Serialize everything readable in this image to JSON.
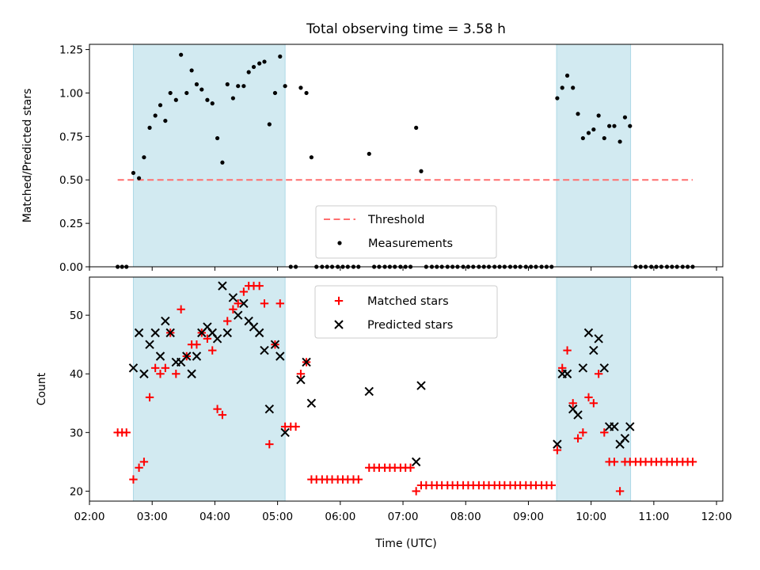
{
  "title": "Total observing time = 3.58 h",
  "colors": {
    "shade": "#add8e6",
    "threshold": "#ff6f6f",
    "measure": "#000000",
    "matched": "#ff0000",
    "predicted": "#000000"
  },
  "chart_data": [
    {
      "type": "scatter",
      "panel": "top",
      "xlabel": "",
      "ylabel": "Matched/Predicted stars",
      "ylim": [
        0,
        1.28
      ],
      "yticks": [
        0.0,
        0.25,
        0.5,
        0.75,
        1.0,
        1.25
      ],
      "ytick_labels": [
        "0.00",
        "0.25",
        "0.50",
        "0.75",
        "1.00",
        "1.25"
      ],
      "xlim_hours": [
        2.0,
        12.1
      ],
      "legend_position": "lower-center",
      "shaded_ranges_hours": [
        [
          2.7,
          5.12
        ],
        [
          9.45,
          10.63
        ]
      ],
      "threshold": {
        "name": "Threshold",
        "value": 0.5,
        "x_range_hours": [
          2.45,
          11.62
        ]
      },
      "measurements": {
        "name": "Measurements",
        "x_hours": [
          2.45,
          2.52,
          2.59,
          2.7,
          2.79,
          2.87,
          2.96,
          3.05,
          3.13,
          3.21,
          3.29,
          3.38,
          3.46,
          3.55,
          3.63,
          3.71,
          3.79,
          3.88,
          3.96,
          4.04,
          4.12,
          4.2,
          4.29,
          4.37,
          4.46,
          4.54,
          4.62,
          4.71,
          4.79,
          4.87,
          4.96,
          5.04,
          5.12,
          5.21,
          5.29,
          5.37,
          5.46,
          5.54,
          5.62,
          5.71,
          5.79,
          5.87,
          5.96,
          6.04,
          6.12,
          6.21,
          6.29,
          6.46,
          6.54,
          6.62,
          6.71,
          6.79,
          6.87,
          6.96,
          7.04,
          7.12,
          7.21,
          7.29,
          7.37,
          7.46,
          7.54,
          7.62,
          7.71,
          7.79,
          7.87,
          7.96,
          8.04,
          8.12,
          8.21,
          8.29,
          8.37,
          8.46,
          8.54,
          8.62,
          8.71,
          8.79,
          8.87,
          8.96,
          9.04,
          9.12,
          9.21,
          9.29,
          9.37,
          9.46,
          9.54,
          9.62,
          9.71,
          9.79,
          9.87,
          9.96,
          10.04,
          10.12,
          10.21,
          10.29,
          10.37,
          10.46,
          10.54,
          10.62,
          10.71,
          10.79,
          10.87,
          10.96,
          11.04,
          11.12,
          11.21,
          11.29,
          11.37,
          11.46,
          11.54,
          11.62
        ],
        "y": [
          0,
          0,
          0,
          0.54,
          0.51,
          0.63,
          0.8,
          0.87,
          0.93,
          0.84,
          1.0,
          0.96,
          1.22,
          1.0,
          1.13,
          1.05,
          1.02,
          0.96,
          0.94,
          0.74,
          0.6,
          1.05,
          0.97,
          1.04,
          1.04,
          1.12,
          1.15,
          1.17,
          1.18,
          0.82,
          1.0,
          1.21,
          1.04,
          0,
          0,
          1.03,
          1.0,
          0.63,
          0,
          0,
          0,
          0,
          0,
          0,
          0,
          0,
          0,
          0.65,
          0,
          0,
          0,
          0,
          0,
          0,
          0,
          0,
          0.8,
          0.55,
          0,
          0,
          0,
          0,
          0,
          0,
          0,
          0,
          0,
          0,
          0,
          0,
          0,
          0,
          0,
          0,
          0,
          0,
          0,
          0,
          0,
          0,
          0,
          0,
          0,
          0.97,
          1.03,
          1.1,
          1.03,
          0.88,
          0.74,
          0.77,
          0.79,
          0.87,
          0.74,
          0.81,
          0.81,
          0.72,
          0.86,
          0.81,
          0,
          0,
          0,
          0,
          0,
          0,
          0,
          0,
          0,
          0,
          0,
          0
        ]
      }
    },
    {
      "type": "scatter",
      "panel": "bottom",
      "xlabel": "Time (UTC)",
      "ylabel": "Count",
      "ylim": [
        18.3,
        56.5
      ],
      "yticks": [
        20,
        30,
        40,
        50
      ],
      "ytick_labels": [
        "20",
        "30",
        "40",
        "50"
      ],
      "xlim_hours": [
        2.0,
        12.1
      ],
      "xticks_hours": [
        2,
        3,
        4,
        5,
        6,
        7,
        8,
        9,
        10,
        11,
        12
      ],
      "xtick_labels": [
        "02:00",
        "03:00",
        "04:00",
        "05:00",
        "06:00",
        "07:00",
        "08:00",
        "09:00",
        "10:00",
        "11:00",
        "12:00"
      ],
      "legend_position": "upper-center",
      "shaded_ranges_hours": [
        [
          2.7,
          5.12
        ],
        [
          9.45,
          10.63
        ]
      ],
      "series": [
        {
          "name": "Matched stars",
          "marker": "plus",
          "x_hours": [
            2.45,
            2.52,
            2.59,
            2.7,
            2.79,
            2.87,
            2.96,
            3.05,
            3.13,
            3.21,
            3.29,
            3.38,
            3.46,
            3.55,
            3.63,
            3.71,
            3.79,
            3.88,
            3.96,
            4.04,
            4.12,
            4.2,
            4.29,
            4.37,
            4.46,
            4.54,
            4.62,
            4.71,
            4.79,
            4.87,
            4.96,
            5.04,
            5.12,
            5.21,
            5.29,
            5.37,
            5.46,
            5.54,
            5.62,
            5.71,
            5.79,
            5.87,
            5.96,
            6.04,
            6.12,
            6.21,
            6.29,
            6.46,
            6.54,
            6.62,
            6.71,
            6.79,
            6.87,
            6.96,
            7.04,
            7.12,
            7.21,
            7.29,
            7.37,
            7.46,
            7.54,
            7.62,
            7.71,
            7.79,
            7.87,
            7.96,
            8.04,
            8.12,
            8.21,
            8.29,
            8.37,
            8.46,
            8.54,
            8.62,
            8.71,
            8.79,
            8.87,
            8.96,
            9.04,
            9.12,
            9.21,
            9.29,
            9.37,
            9.46,
            9.54,
            9.62,
            9.71,
            9.79,
            9.87,
            9.96,
            10.04,
            10.12,
            10.21,
            10.29,
            10.37,
            10.46,
            10.54,
            10.62,
            10.71,
            10.79,
            10.87,
            10.96,
            11.04,
            11.12,
            11.21,
            11.29,
            11.37,
            11.46,
            11.54,
            11.62
          ],
          "y": [
            30,
            30,
            30,
            22,
            24,
            25,
            36,
            41,
            40,
            41,
            47,
            40,
            51,
            43,
            45,
            45,
            47,
            46,
            44,
            34,
            33,
            49,
            51,
            52,
            54,
            55,
            55,
            55,
            52,
            28,
            45,
            52,
            31,
            31,
            31,
            40,
            42,
            22,
            22,
            22,
            22,
            22,
            22,
            22,
            22,
            22,
            22,
            24,
            24,
            24,
            24,
            24,
            24,
            24,
            24,
            24,
            20,
            21,
            21,
            21,
            21,
            21,
            21,
            21,
            21,
            21,
            21,
            21,
            21,
            21,
            21,
            21,
            21,
            21,
            21,
            21,
            21,
            21,
            21,
            21,
            21,
            21,
            21,
            27,
            41,
            44,
            35,
            29,
            30,
            36,
            35,
            40,
            30,
            25,
            25,
            20,
            25,
            25,
            25,
            25,
            25,
            25,
            25,
            25,
            25,
            25,
            25,
            25,
            25,
            25
          ]
        },
        {
          "name": "Predicted stars",
          "marker": "x",
          "x_hours": [
            2.7,
            2.79,
            2.87,
            2.96,
            3.05,
            3.13,
            3.21,
            3.29,
            3.38,
            3.46,
            3.55,
            3.63,
            3.71,
            3.79,
            3.88,
            3.96,
            4.04,
            4.12,
            4.2,
            4.29,
            4.37,
            4.46,
            4.54,
            4.62,
            4.71,
            4.79,
            4.87,
            4.96,
            5.04,
            5.12,
            5.37,
            5.46,
            5.54,
            6.46,
            7.21,
            7.29,
            9.46,
            9.54,
            9.62,
            9.71,
            9.79,
            9.87,
            9.96,
            10.04,
            10.12,
            10.21,
            10.29,
            10.37,
            10.46,
            10.54,
            10.62
          ],
          "y": [
            41,
            47,
            40,
            45,
            47,
            43,
            49,
            47,
            42,
            42,
            43,
            40,
            43,
            47,
            48,
            47,
            46,
            55,
            47,
            53,
            50,
            52,
            49,
            48,
            47,
            44,
            34,
            45,
            43,
            30,
            39,
            42,
            35,
            37,
            25,
            38,
            28,
            40,
            40,
            34,
            33,
            41,
            47,
            44,
            46,
            41,
            31,
            31,
            28,
            29,
            31
          ]
        }
      ]
    }
  ]
}
